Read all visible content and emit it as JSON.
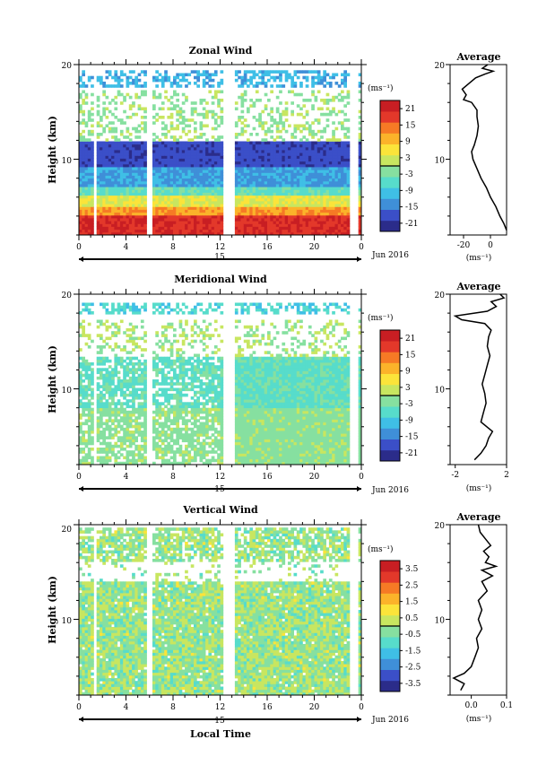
{
  "chart_data": [
    {
      "type": "heatmap",
      "title": "Zonal Wind",
      "ylabel": "Height (km)",
      "ylim": [
        2,
        20
      ],
      "y_ticks": [
        "20",
        "10"
      ],
      "x_ticks": [
        "0",
        "4",
        "8",
        "12",
        "16",
        "20",
        "0"
      ],
      "xlim": [
        0,
        24
      ],
      "date_label": "15",
      "month_label": "Jun 2016",
      "colorbar": {
        "unit": "(ms⁻¹)",
        "ticks": [
          "21",
          "15",
          "9",
          "3",
          "-3",
          "-9",
          "-15",
          "-21"
        ],
        "range": [
          -24,
          24
        ]
      },
      "average": {
        "title": "Average",
        "xlabel": "(ms⁻¹)",
        "x_ticks": [
          "-20",
          "0"
        ],
        "xlim": [
          -30,
          12
        ],
        "y_ticks": [
          "20",
          "10"
        ],
        "profile": [
          [
            2.5,
            12
          ],
          [
            3.2,
            10
          ],
          [
            4.0,
            7
          ],
          [
            5.0,
            4
          ],
          [
            6.0,
            0
          ],
          [
            7.0,
            -3
          ],
          [
            8.0,
            -7
          ],
          [
            9.0,
            -10
          ],
          [
            10.0,
            -13
          ],
          [
            10.8,
            -14
          ],
          [
            11.5,
            -12
          ],
          [
            12.5,
            -10
          ],
          [
            13.5,
            -9
          ],
          [
            14.5,
            -10
          ],
          [
            15.2,
            -10
          ],
          [
            16.0,
            -14
          ],
          [
            16.3,
            -20
          ],
          [
            16.8,
            -18
          ],
          [
            17.4,
            -21
          ],
          [
            18.0,
            -16
          ],
          [
            18.6,
            -11
          ],
          [
            19.0,
            -4
          ],
          [
            19.3,
            2
          ],
          [
            19.6,
            -6
          ],
          [
            20.0,
            -2
          ]
        ]
      },
      "approx_values": {
        "below_4km": 18,
        "at_5km": 9,
        "at_6km": 0,
        "at_7km": -8,
        "at_9km": -16,
        "at_11km": -20,
        "at_18km": -12
      }
    },
    {
      "type": "heatmap",
      "title": "Meridional Wind",
      "ylabel": "Height (km)",
      "ylim": [
        2,
        20
      ],
      "y_ticks": [
        "20",
        "10"
      ],
      "x_ticks": [
        "0",
        "4",
        "8",
        "12",
        "16",
        "20",
        "0"
      ],
      "xlim": [
        0,
        24
      ],
      "date_label": "15",
      "month_label": "Jun 2016",
      "colorbar": {
        "unit": "(ms⁻¹)",
        "ticks": [
          "21",
          "15",
          "9",
          "3",
          "-3",
          "-9",
          "-15",
          "-21"
        ],
        "range": [
          -24,
          24
        ]
      },
      "average": {
        "title": "Average",
        "xlabel": "(ms⁻¹)",
        "x_ticks": [
          "-2",
          "2"
        ],
        "xlim": [
          -2.4,
          2
        ],
        "y_ticks": [
          "20",
          "10"
        ],
        "profile": [
          [
            2.5,
            -0.5
          ],
          [
            3.2,
            0.0
          ],
          [
            4.0,
            0.4
          ],
          [
            4.8,
            0.6
          ],
          [
            5.5,
            0.9
          ],
          [
            6.5,
            0.0
          ],
          [
            7.5,
            0.2
          ],
          [
            8.5,
            0.4
          ],
          [
            9.5,
            0.3
          ],
          [
            10.5,
            0.1
          ],
          [
            11.5,
            0.3
          ],
          [
            12.5,
            0.5
          ],
          [
            13.5,
            0.7
          ],
          [
            14.5,
            0.5
          ],
          [
            15.5,
            0.6
          ],
          [
            16.2,
            0.8
          ],
          [
            16.9,
            0.3
          ],
          [
            17.3,
            -1.5
          ],
          [
            17.7,
            -2.0
          ],
          [
            18.2,
            0.5
          ],
          [
            18.7,
            1.2
          ],
          [
            19.2,
            0.8
          ],
          [
            19.6,
            1.8
          ],
          [
            20.0,
            1.5
          ]
        ]
      },
      "approx_values": {
        "below_8km": -3,
        "8_to_14km": -6,
        "at_18km": -12
      }
    },
    {
      "type": "heatmap",
      "title": "Vertical Wind",
      "ylabel": "Height (km)",
      "xlabel": "Local Time",
      "ylim": [
        2,
        20
      ],
      "y_ticks": [
        "20",
        "10"
      ],
      "x_ticks": [
        "0",
        "4",
        "8",
        "12",
        "16",
        "20",
        "0"
      ],
      "xlim": [
        0,
        24
      ],
      "date_label": "15",
      "month_label": "Jun 2016",
      "colorbar": {
        "unit": "(ms⁻¹)",
        "ticks": [
          "3.5",
          "2.5",
          "1.5",
          "0.5",
          "-0.5",
          "-1.5",
          "-2.5",
          "-3.5"
        ],
        "range": [
          -4,
          4
        ]
      },
      "average": {
        "title": "Average",
        "xlabel": "(ms⁻¹)",
        "x_ticks": [
          "0.0",
          "0.1"
        ],
        "xlim": [
          -0.06,
          0.1
        ],
        "y_ticks": [
          "20",
          "10"
        ],
        "profile": [
          [
            2.5,
            -0.03
          ],
          [
            3.2,
            -0.02
          ],
          [
            3.8,
            -0.05
          ],
          [
            4.3,
            -0.02
          ],
          [
            5.0,
            0.0
          ],
          [
            6.0,
            0.01
          ],
          [
            7.0,
            0.02
          ],
          [
            8.0,
            0.015
          ],
          [
            9.0,
            0.03
          ],
          [
            10.0,
            0.02
          ],
          [
            11.0,
            0.03
          ],
          [
            12.0,
            0.02
          ],
          [
            13.0,
            0.045
          ],
          [
            14.0,
            0.03
          ],
          [
            14.6,
            0.06
          ],
          [
            15.2,
            0.03
          ],
          [
            15.6,
            0.07
          ],
          [
            16.0,
            0.04
          ],
          [
            16.6,
            0.05
          ],
          [
            17.2,
            0.035
          ],
          [
            17.8,
            0.055
          ],
          [
            18.5,
            0.04
          ],
          [
            19.2,
            0.025
          ],
          [
            20.0,
            0.02
          ]
        ]
      },
      "approx_values": {
        "typical": 0.0
      }
    }
  ],
  "colors": {
    "scale": [
      "#2b2c8a",
      "#3b4fc8",
      "#3f8fd8",
      "#3fbfe6",
      "#57dccb",
      "#86e0a0",
      "#c8e660",
      "#fbe43a",
      "#fbb32a",
      "#f67a25",
      "#e3382a",
      "#c81e23"
    ]
  }
}
